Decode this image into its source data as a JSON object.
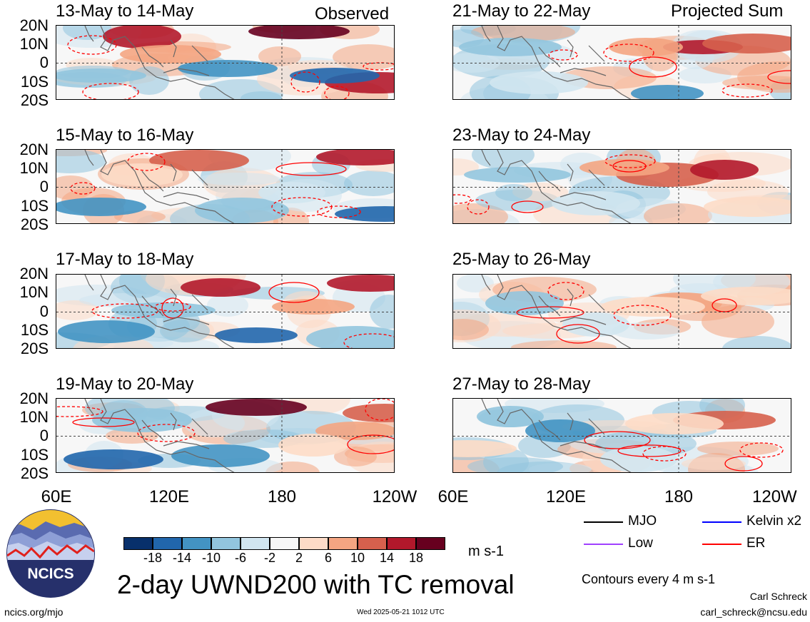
{
  "header": {
    "left_label": "Observed",
    "right_label": "Projected Sum"
  },
  "panels_left": [
    {
      "title": "13-May to 14-May"
    },
    {
      "title": "15-May to 16-May"
    },
    {
      "title": "17-May to 18-May"
    },
    {
      "title": "19-May to 20-May"
    }
  ],
  "panels_right": [
    {
      "title": "21-May to 22-May"
    },
    {
      "title": "23-May to 24-May"
    },
    {
      "title": "25-May to 26-May"
    },
    {
      "title": "27-May to 28-May"
    }
  ],
  "axes": {
    "y_ticks": [
      "20N",
      "10N",
      "0",
      "10S",
      "20S"
    ],
    "x_ticks": [
      "60E",
      "120E",
      "180",
      "120W"
    ]
  },
  "colorbar": {
    "labels": [
      "-18",
      "-14",
      "-10",
      "-6",
      "-2",
      "2",
      "6",
      "10",
      "14",
      "18"
    ],
    "colors": [
      "#08306b",
      "#2166ac",
      "#4393c3",
      "#92c5de",
      "#d1e5f0",
      "#f7f7f7",
      "#fddbc7",
      "#f4a582",
      "#d6604d",
      "#b2182b",
      "#67001f"
    ],
    "units": "m s-1"
  },
  "legend": {
    "items": [
      {
        "label": "MJO",
        "color": "#000000"
      },
      {
        "label": "Kelvin x2",
        "color": "#0000ff"
      },
      {
        "label": "Low",
        "color": "#a040ff"
      },
      {
        "label": "ER",
        "color": "#ff0000"
      }
    ],
    "contour_note": "Contours every 4 m s-1"
  },
  "footer": {
    "title": "2-day UWND200 with TC removal",
    "url": "ncics.org/mjo",
    "timestamp": "Wed 2025-05-21 1012 UTC",
    "author": "Carl Schreck",
    "email": "carl_schreck@ncsu.edu",
    "logo_text": "NCICS"
  },
  "chart_data": {
    "type": "heatmap",
    "title": "2-day UWND200 with TC removal",
    "xlabel": "",
    "ylabel": "",
    "x_ticks": [
      "60E",
      "120E",
      "180",
      "120W"
    ],
    "y_ticks": [
      "20N",
      "10N",
      "0",
      "10S",
      "20S"
    ],
    "color_levels": [
      -18,
      -14,
      -10,
      -6,
      -2,
      2,
      6,
      10,
      14,
      18
    ],
    "units": "m s-1",
    "contour_interval": "Contours every 4 m s-1",
    "series": [
      {
        "name": "MJO"
      },
      {
        "name": "Kelvin x2"
      },
      {
        "name": "Low"
      },
      {
        "name": "ER"
      }
    ]
  }
}
